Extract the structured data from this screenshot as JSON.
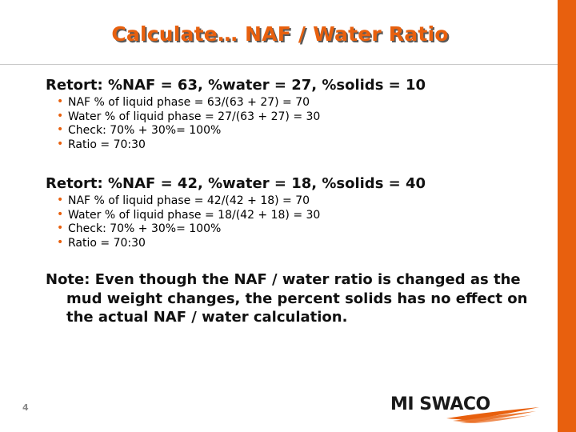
{
  "slide": {
    "title": "Calculate… NAF / Water Ratio",
    "page_number": "4"
  },
  "blocks": [
    {
      "heading": "Retort: %NAF = 63, %water = 27, %solids = 10",
      "bullets": [
        "NAF % of liquid phase = 63/(63 + 27) = 70",
        "Water % of liquid phase = 27/(63 + 27) = 30",
        "Check: 70% + 30%= 100%",
        "Ratio = 70:30"
      ]
    },
    {
      "heading": "Retort: %NAF = 42, %water = 18, %solids = 40",
      "bullets": [
        "NAF % of liquid phase = 42/(42 + 18) = 70",
        "Water % of liquid phase = 18/(42 + 18) = 30",
        "Check: 70% + 30%= 100%",
        "Ratio = 70:30"
      ]
    }
  ],
  "note": "Note: Even though the NAF / water ratio is changed as the mud weight changes, the percent solids has no effect on the actual NAF / water calculation.",
  "logo": {
    "text": "MI SWACO",
    "icon": "mi-swaco-logo-swoosh"
  },
  "colors": {
    "accent": "#e8600e",
    "text": "#111111",
    "title_shadow": "#5a5a5a"
  }
}
